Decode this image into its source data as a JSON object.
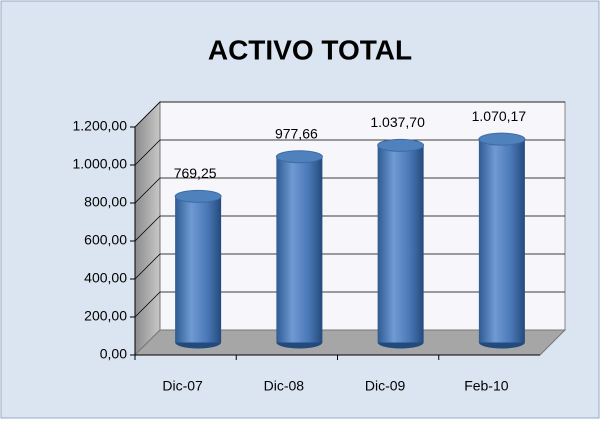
{
  "chart_data": {
    "type": "bar3d",
    "title": "ACTIVO TOTAL",
    "categories": [
      "Dic-07",
      "Dic-08",
      "Dic-09",
      "Feb-10"
    ],
    "values": [
      769.25,
      977.66,
      1037.7,
      1070.17
    ],
    "value_labels": [
      "769,25",
      "977,66",
      "1.037,70",
      "1.070,17"
    ],
    "color": "#4f81bd",
    "ylim": [
      0,
      1200
    ],
    "yticks": [
      {
        "value": 0,
        "label": "0,00"
      },
      {
        "value": 200,
        "label": "200,00"
      },
      {
        "value": 400,
        "label": "400,00"
      },
      {
        "value": 600,
        "label": "600,00"
      },
      {
        "value": 800,
        "label": "800,00"
      },
      {
        "value": 1000,
        "label": "1.000,00"
      },
      {
        "value": 1200,
        "label": "1.200,00"
      }
    ],
    "grid": true
  }
}
